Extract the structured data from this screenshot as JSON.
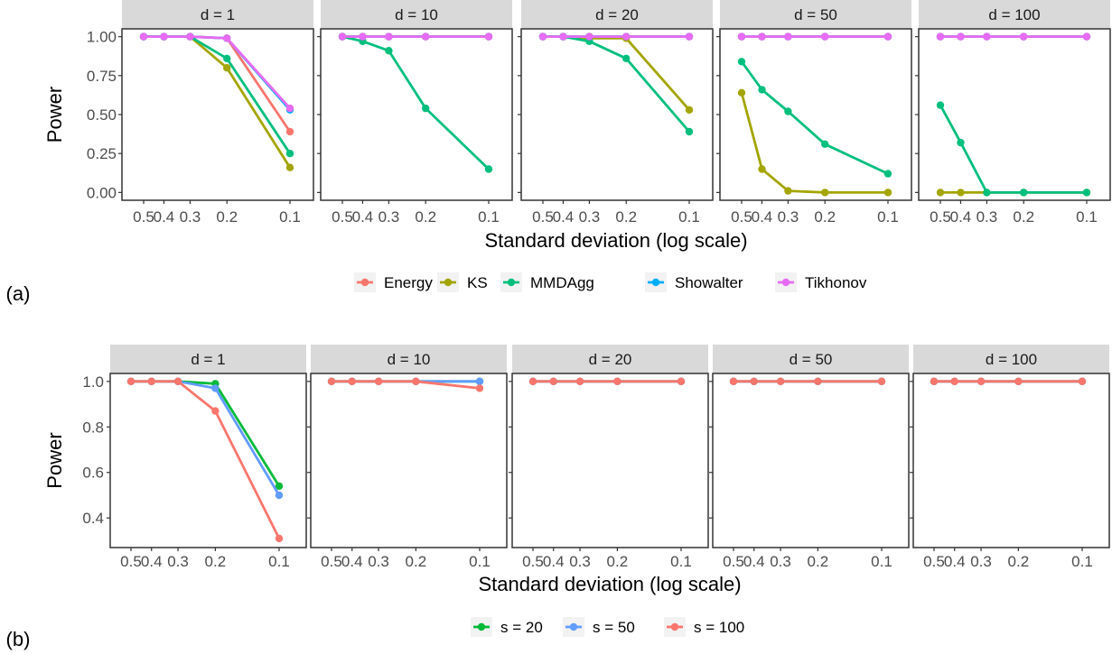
{
  "chart_data": [
    {
      "type": "line",
      "panel_label": "(a)",
      "xlabel": "Standard deviation (log scale)",
      "ylabel": "Power",
      "x_ticks": [
        "0.5",
        "0.4",
        "0.3",
        "0.2",
        "0.1"
      ],
      "x": [
        0.5,
        0.4,
        0.3,
        0.2,
        0.1
      ],
      "x_scale": "log",
      "x_reversed": true,
      "ylim": [
        -0.05,
        1.05
      ],
      "y_ticks": [
        "0.00",
        "0.25",
        "0.50",
        "0.75",
        "1.00"
      ],
      "y_tick_values": [
        0.0,
        0.25,
        0.5,
        0.75,
        1.0
      ],
      "grid": false,
      "legend_position": "bottom",
      "series": [
        {
          "name": "Energy",
          "color": "#F8766D"
        },
        {
          "name": "KS",
          "color": "#A3A500"
        },
        {
          "name": "MMDAgg",
          "color": "#00BF7D"
        },
        {
          "name": "Showalter",
          "color": "#00B0F6"
        },
        {
          "name": "Tikhonov",
          "color": "#E76BF3"
        }
      ],
      "facets": [
        {
          "strip": "d = 1",
          "values": {
            "Energy": [
              1.0,
              1.0,
              1.0,
              0.99,
              0.39
            ],
            "KS": [
              1.0,
              1.0,
              1.0,
              0.8,
              0.16
            ],
            "MMDAgg": [
              1.0,
              1.0,
              1.0,
              0.86,
              0.25
            ],
            "Showalter": [
              1.0,
              1.0,
              1.0,
              0.99,
              0.53
            ],
            "Tikhonov": [
              1.0,
              1.0,
              1.0,
              0.99,
              0.54
            ]
          }
        },
        {
          "strip": "d = 10",
          "values": {
            "Energy": [
              1.0,
              1.0,
              1.0,
              1.0,
              1.0
            ],
            "KS": [
              1.0,
              1.0,
              1.0,
              1.0,
              1.0
            ],
            "MMDAgg": [
              1.0,
              0.97,
              0.91,
              0.54,
              0.15
            ],
            "Showalter": [
              1.0,
              1.0,
              1.0,
              1.0,
              1.0
            ],
            "Tikhonov": [
              1.0,
              1.0,
              1.0,
              1.0,
              1.0
            ]
          }
        },
        {
          "strip": "d = 20",
          "values": {
            "Energy": [
              1.0,
              1.0,
              1.0,
              1.0,
              1.0
            ],
            "KS": [
              1.0,
              1.0,
              0.99,
              0.99,
              0.53
            ],
            "MMDAgg": [
              1.0,
              1.0,
              0.97,
              0.86,
              0.39
            ],
            "Showalter": [
              1.0,
              1.0,
              1.0,
              1.0,
              1.0
            ],
            "Tikhonov": [
              1.0,
              1.0,
              1.0,
              1.0,
              1.0
            ]
          }
        },
        {
          "strip": "d = 50",
          "values": {
            "Energy": [
              1.0,
              1.0,
              1.0,
              1.0,
              1.0
            ],
            "KS": [
              0.64,
              0.15,
              0.01,
              0.0,
              0.0
            ],
            "MMDAgg": [
              0.84,
              0.66,
              0.52,
              0.31,
              0.12
            ],
            "Showalter": [
              1.0,
              1.0,
              1.0,
              1.0,
              1.0
            ],
            "Tikhonov": [
              1.0,
              1.0,
              1.0,
              1.0,
              1.0
            ]
          }
        },
        {
          "strip": "d = 100",
          "values": {
            "Energy": [
              1.0,
              1.0,
              1.0,
              1.0,
              1.0
            ],
            "KS": [
              0.0,
              0.0,
              0.0,
              0.0,
              0.0
            ],
            "MMDAgg": [
              0.56,
              0.32,
              0.0,
              0.0,
              0.0
            ],
            "Showalter": [
              1.0,
              1.0,
              1.0,
              1.0,
              1.0
            ],
            "Tikhonov": [
              1.0,
              1.0,
              1.0,
              1.0,
              1.0
            ]
          }
        }
      ]
    },
    {
      "type": "line",
      "panel_label": "(b)",
      "xlabel": "Standard deviation (log scale)",
      "ylabel": "Power",
      "x_ticks": [
        "0.5",
        "0.4",
        "0.3",
        "0.2",
        "0.1"
      ],
      "x": [
        0.5,
        0.4,
        0.3,
        0.2,
        0.1
      ],
      "x_scale": "log",
      "x_reversed": true,
      "ylim": [
        0.27,
        1.035
      ],
      "y_ticks": [
        "0.4",
        "0.6",
        "0.8",
        "1.0"
      ],
      "y_tick_values": [
        0.4,
        0.6,
        0.8,
        1.0
      ],
      "grid": false,
      "legend_position": "bottom",
      "series": [
        {
          "name": "s = 20",
          "color": "#00BA38"
        },
        {
          "name": "s = 50",
          "color": "#619CFF"
        },
        {
          "name": "s = 100",
          "color": "#F8766D"
        }
      ],
      "facets": [
        {
          "strip": "d = 1",
          "values": {
            "s = 20": [
              1.0,
              1.0,
              1.0,
              0.99,
              0.54
            ],
            "s = 50": [
              1.0,
              1.0,
              1.0,
              0.97,
              0.5
            ],
            "s = 100": [
              1.0,
              1.0,
              1.0,
              0.87,
              0.31
            ]
          }
        },
        {
          "strip": "d = 10",
          "values": {
            "s = 20": [
              1.0,
              1.0,
              1.0,
              1.0,
              1.0
            ],
            "s = 50": [
              1.0,
              1.0,
              1.0,
              1.0,
              1.0
            ],
            "s = 100": [
              1.0,
              1.0,
              1.0,
              1.0,
              0.97
            ]
          }
        },
        {
          "strip": "d = 20",
          "values": {
            "s = 20": [
              1.0,
              1.0,
              1.0,
              1.0,
              1.0
            ],
            "s = 50": [
              1.0,
              1.0,
              1.0,
              1.0,
              1.0
            ],
            "s = 100": [
              1.0,
              1.0,
              1.0,
              1.0,
              1.0
            ]
          }
        },
        {
          "strip": "d = 50",
          "values": {
            "s = 20": [
              1.0,
              1.0,
              1.0,
              1.0,
              1.0
            ],
            "s = 50": [
              1.0,
              1.0,
              1.0,
              1.0,
              1.0
            ],
            "s = 100": [
              1.0,
              1.0,
              1.0,
              1.0,
              1.0
            ]
          }
        },
        {
          "strip": "d = 100",
          "values": {
            "s = 20": [
              1.0,
              1.0,
              1.0,
              1.0,
              1.0
            ],
            "s = 50": [
              1.0,
              1.0,
              1.0,
              1.0,
              1.0
            ],
            "s = 100": [
              1.0,
              1.0,
              1.0,
              1.0,
              1.0
            ]
          }
        }
      ]
    }
  ]
}
